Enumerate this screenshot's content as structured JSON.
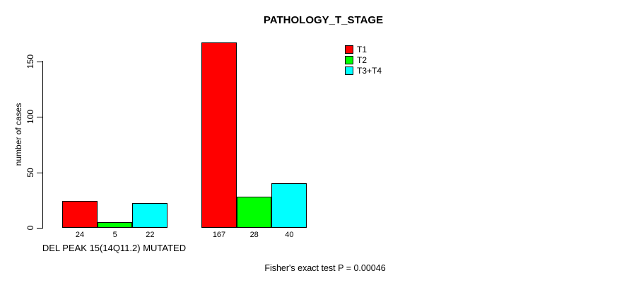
{
  "title": "PATHOLOGY_T_STAGE",
  "y_axis": {
    "label": "number of cases",
    "ticks": [
      0,
      50,
      100,
      150
    ]
  },
  "x_axis": {
    "group_label": "DEL PEAK 15(14Q11.2) MUTATED"
  },
  "legend": {
    "items": [
      {
        "label": "T1",
        "color": "#ff0000"
      },
      {
        "label": "T2",
        "color": "#00ff00"
      },
      {
        "label": "T3+T4",
        "color": "#00ffff"
      }
    ]
  },
  "footer": "Fisher's exact test P = 0.00046",
  "chart_data": {
    "type": "bar",
    "title": "PATHOLOGY_T_STAGE",
    "ylabel": "number of cases",
    "xlabel": "DEL PEAK 15(14Q11.2) MUTATED",
    "categories": [
      "DEL PEAK 15(14Q11.2) MUTATED",
      ""
    ],
    "series": [
      {
        "name": "T1",
        "color": "#ff0000",
        "values": [
          24,
          167
        ]
      },
      {
        "name": "T2",
        "color": "#00ff00",
        "values": [
          5,
          28
        ]
      },
      {
        "name": "T3+T4",
        "color": "#00ffff",
        "values": [
          22,
          40
        ]
      }
    ],
    "yticks": [
      0,
      50,
      100,
      150
    ],
    "ylim": [
      0,
      170
    ],
    "bar_value_labels": [
      [
        24,
        5,
        22
      ],
      [
        167,
        28,
        40
      ]
    ],
    "grid": false,
    "legend_position": "top-right",
    "annotation": "Fisher's exact test P = 0.00046"
  }
}
